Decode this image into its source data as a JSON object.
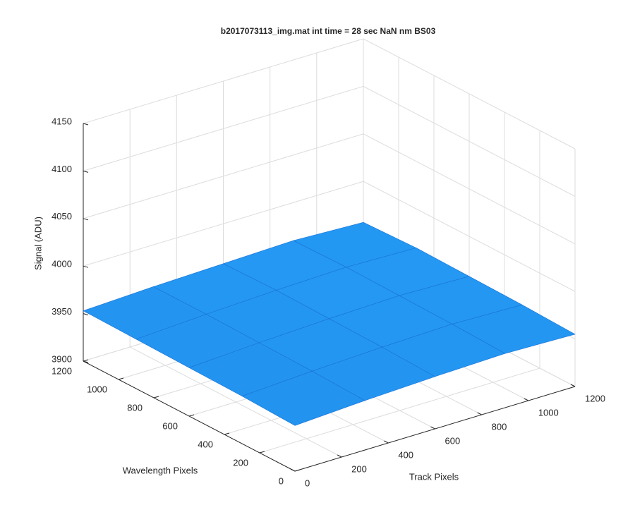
{
  "chart_data": {
    "type": "surface3d",
    "title": "b2017073113_img.mat int time = 28 sec  NaN nm BS03",
    "xlabel": "Track Pixels",
    "ylabel": "Wavelength Pixels",
    "zlabel": "Signal (ADU)",
    "x": [
      0,
      300,
      600,
      900,
      1200
    ],
    "y": [
      0,
      300,
      600,
      900,
      1200
    ],
    "z": [
      [
        3948,
        3952,
        3955,
        3957,
        3955
      ],
      [
        3950,
        3954,
        3957,
        3959,
        3957
      ],
      [
        3951,
        3955,
        3958,
        3960,
        3958
      ],
      [
        3952,
        3956,
        3959,
        3961,
        3959
      ],
      [
        3953,
        3956,
        3958,
        3960,
        3957
      ]
    ],
    "color": "#1a72d6",
    "xlim": [
      0,
      1200
    ],
    "xticks": [
      0,
      200,
      400,
      600,
      800,
      1000,
      1200
    ],
    "ylim": [
      0,
      1200
    ],
    "yticks": [
      0,
      200,
      400,
      600,
      800,
      1000,
      1200
    ],
    "zlim": [
      3900,
      4150
    ],
    "zticks": [
      3900,
      3950,
      4000,
      4050,
      4100,
      4150
    ],
    "grid": true
  }
}
